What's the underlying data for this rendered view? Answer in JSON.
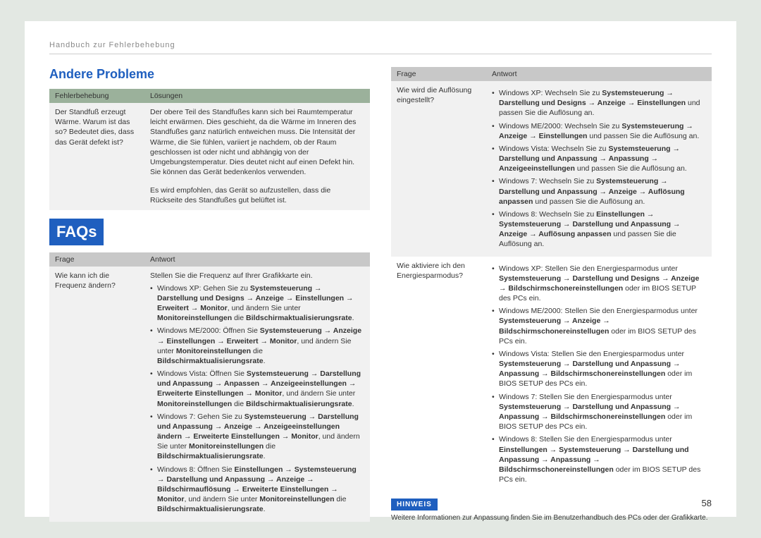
{
  "header": "Handbuch zur Fehlerbehebung",
  "page_number": "58",
  "colors": {
    "page_bg": "#e3e8e3",
    "accent": "#1f5fbf",
    "th_green": "#9bb19b",
    "th_grey": "#c8c8c8",
    "row_bg": "#f1f1f1"
  },
  "left": {
    "section_title": "Andere Probleme",
    "table1": {
      "headers": [
        "Fehlerbehebung",
        "Lösungen"
      ],
      "q": "Der Standfuß erzeugt Wärme. Warum ist das so? Bedeutet dies, dass das Gerät defekt ist?",
      "a1": "Der obere Teil des Standfußes kann sich bei Raumtemperatur leicht erwärmen. Dies geschieht, da die Wärme im Inneren des Standfußes ganz natürlich entweichen muss. Die Intensität der Wärme, die Sie fühlen, variiert je nachdem, ob der Raum geschlossen ist oder nicht und abhängig von der Umgebungstemperatur. Dies deutet nicht auf einen Defekt hin. Sie können das Gerät bedenkenlos verwenden.",
      "a2": "Es wird empfohlen, das Gerät so aufzustellen, dass die Rückseite des Standfußes gut belüftet ist."
    },
    "faqs_label": "FAQs",
    "table2": {
      "headers": [
        "Frage",
        "Antwort"
      ],
      "q": "Wie kann ich die Frequenz ändern?",
      "intro": "Stellen Sie die Frequenz auf Ihrer Grafikkarte ein.",
      "items": {
        "xp": {
          "pre": "Windows XP: Gehen Sie zu ",
          "path": "Systemsteuerung → Darstellung und Designs → Anzeige → Einstellungen → Erweitert → Monitor",
          "mid": ", und ändern Sie unter ",
          "b2": "Monitoreinstellungen",
          "post": " die ",
          "b3": "Bildschirmaktualisierungsrate",
          "end": "."
        },
        "me": {
          "pre": "Windows ME/2000: Öffnen Sie ",
          "path": "Systemsteuerung → Anzeige → Einstellungen → Erweitert → Monitor",
          "mid": ", und ändern Sie unter ",
          "b2": "Monitoreinstellungen",
          "post": " die ",
          "b3": "Bildschirmaktualisierungsrate",
          "end": "."
        },
        "vista": {
          "pre": "Windows Vista: Öffnen Sie ",
          "path": "Systemsteuerung → Darstellung und Anpassung → Anpassen → Anzeigeeinstellungen → Erweiterte Einstellungen → Monitor",
          "mid": ", und ändern Sie unter ",
          "b2": "Monitoreinstellungen",
          "post": " die ",
          "b3": "Bildschirmaktualisierungsrate",
          "end": "."
        },
        "w7": {
          "pre": "Windows 7: Gehen Sie zu ",
          "path": "Systemsteuerung → Darstellung und Anpassung → Anzeige → Anzeigeeinstellungen ändern → Erweiterte Einstellungen → Monitor",
          "mid": ", und ändern Sie unter ",
          "b2": "Monitoreinstellungen",
          "post": " die ",
          "b3": "Bildschirmaktualisierungsrate",
          "end": "."
        },
        "w8": {
          "pre": "Windows 8: Öffnen Sie ",
          "path": "Einstellungen → Systemsteuerung → Darstellung und Anpassung → Anzeige → Bildschirmauflösung → Erweiterte Einstellungen → Monitor",
          "mid": ", und ändern Sie unter ",
          "b2": "Monitoreinstellungen",
          "post": " die ",
          "b3": "Bildschirmaktualisierungsrate",
          "end": "."
        }
      }
    }
  },
  "right": {
    "table": {
      "headers": [
        "Frage",
        "Antwort"
      ],
      "q1": "Wie wird die Auflösung eingestellt?",
      "q1_items": {
        "xp": {
          "pre": "Windows XP: Wechseln Sie zu ",
          "path": "Systemsteuerung → Darstellung und Designs → Anzeige → Einstellungen",
          "post": " und passen Sie die Auflösung an."
        },
        "me": {
          "pre": "Windows ME/2000: Wechseln Sie zu ",
          "path": "Systemsteuerung → Anzeige → Einstellungen",
          "post": " und passen Sie die Auflösung an."
        },
        "vista": {
          "pre": "Windows Vista: Wechseln Sie zu ",
          "path": "Systemsteuerung → Darstellung und Anpassung → Anpassung → Anzeigeeinstellungen",
          "post": " und passen Sie die Auflösung an."
        },
        "w7": {
          "pre": "Windows 7: Wechseln Sie zu ",
          "path": "Systemsteuerung → Darstellung und Anpassung → Anzeige → Auflösung anpassen",
          "post": " und passen Sie die Auflösung an."
        },
        "w8": {
          "pre": "Windows 8: Wechseln Sie zu ",
          "path": "Einstellungen → Systemsteuerung → Darstellung und Anpassung → Anzeige → Auflösung anpassen",
          "post": " und passen Sie die Auflösung an."
        }
      },
      "q2": "Wie aktiviere ich den Energiesparmodus?",
      "q2_items": {
        "xp": {
          "pre": "Windows XP: Stellen Sie den Energiesparmodus unter ",
          "path": "Systemsteuerung → Darstellung und Designs → Anzeige → Bildschirmschonereinstellungen",
          "post": " oder im BIOS SETUP des PCs ein."
        },
        "me": {
          "pre": "Windows ME/2000: Stellen Sie den Energiesparmodus unter ",
          "path": "Systemsteuerung → Anzeige → Bildschirmschonereinstellugen",
          "post": " oder im BIOS SETUP des PCs ein."
        },
        "vista": {
          "pre": "Windows Vista: Stellen Sie den Energiesparmodus unter ",
          "path": "Systemsteuerung → Darstellung und Anpassung → Anpassung → Bildschirmschonereinstellungen",
          "post": " oder im BIOS SETUP des PCs ein."
        },
        "w7": {
          "pre": "Windows 7: Stellen Sie den Energiesparmodus unter ",
          "path": "Systemsteuerung → Darstellung und Anpassung → Anpassung → Bildschirmschonereinstellungen",
          "post": " oder im BIOS SETUP des PCs ein."
        },
        "w8": {
          "pre": "Windows 8: Stellen Sie den Energiesparmodus unter ",
          "path": "Einstellungen → Systemsteuerung → Darstellung und Anpassung → Anpassung → Bildschirmschonereinstellungen",
          "post": " oder im BIOS SETUP des PCs ein."
        }
      }
    },
    "hinweis_label": "HINWEIS",
    "hinweis_text": "Weitere Informationen zur Anpassung finden Sie im Benutzerhandbuch des PCs oder der Grafikkarte."
  }
}
